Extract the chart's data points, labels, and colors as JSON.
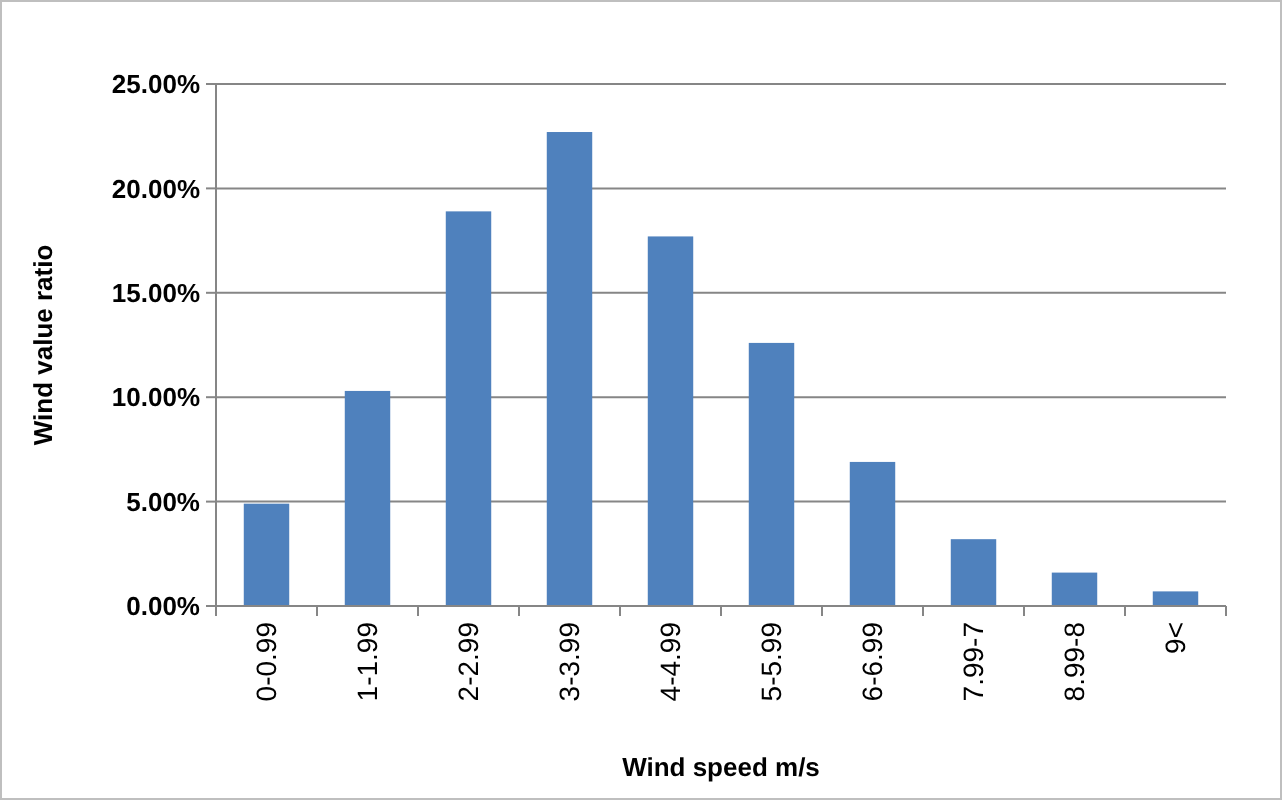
{
  "chart_data": {
    "type": "bar",
    "xlabel": "Wind speed m/s",
    "ylabel": "Wind value ratio",
    "categories": [
      "0-0.99",
      "1-1.99",
      "2-2.99",
      "3-3.99",
      "4-4.99",
      "5-5.99",
      "6-6.99",
      "7.99-7",
      "8.99-8",
      "9<"
    ],
    "values": [
      4.9,
      10.3,
      18.9,
      22.7,
      17.7,
      12.6,
      6.9,
      3.2,
      1.6,
      0.7
    ],
    "color": "#4f81bd",
    "ylim": [
      0,
      25
    ],
    "yticks": [
      {
        "value": 0,
        "label": "0.00%"
      },
      {
        "value": 5,
        "label": "5.00%"
      },
      {
        "value": 10,
        "label": "10.00%"
      },
      {
        "value": 15,
        "label": "15.00%"
      },
      {
        "value": 20,
        "label": "20.00%"
      },
      {
        "value": 25,
        "label": "25.00%"
      }
    ],
    "grid": "y"
  }
}
